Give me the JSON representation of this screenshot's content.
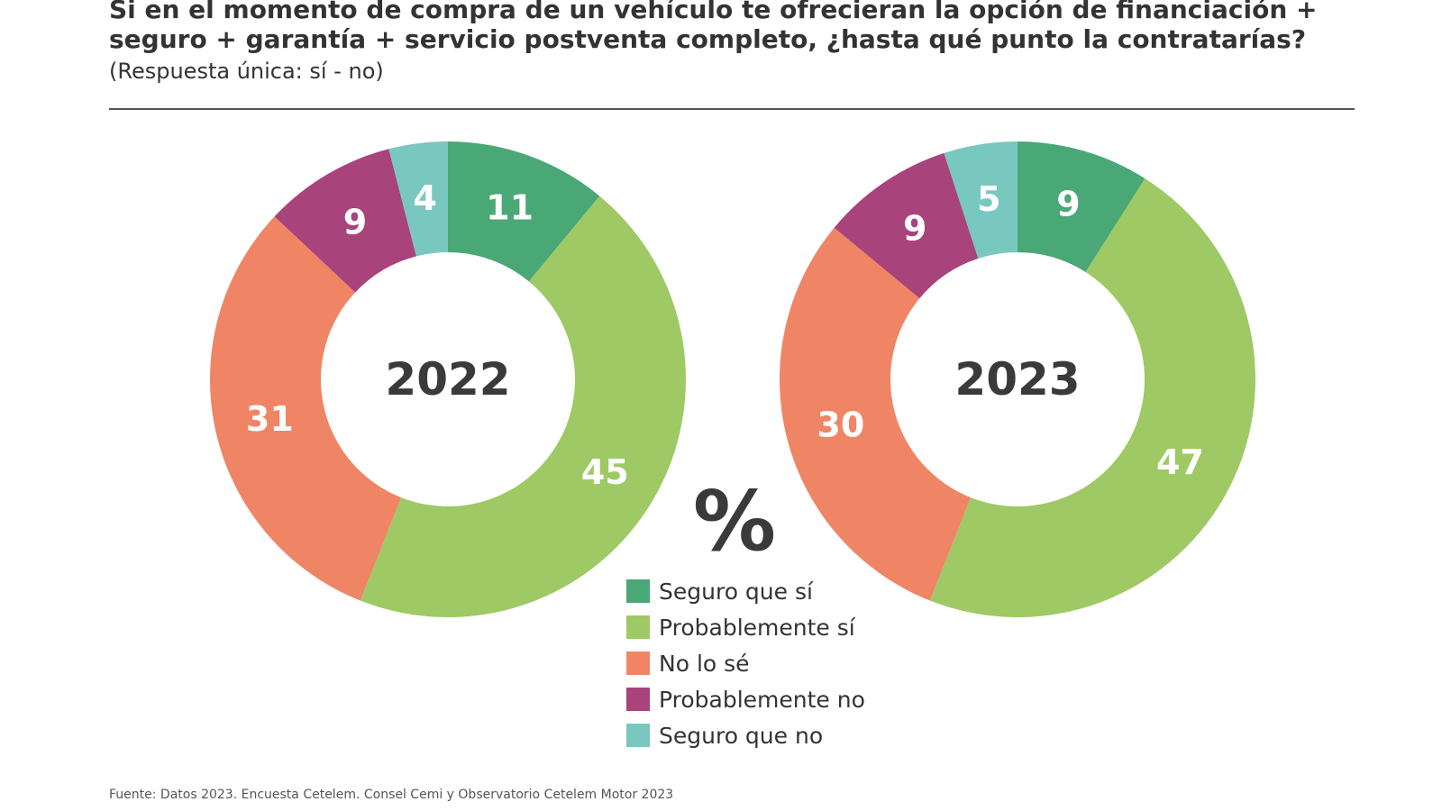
{
  "header": {
    "title": "Si en el momento de compra de un vehículo te ofrecieran la opción de financiación + seguro + garantía + servicio postventa completo, ¿hasta qué punto la contratarías?",
    "subtitle": "(Respuesta única: sí - no)"
  },
  "unit_label": "%",
  "chart_data": [
    {
      "type": "pie",
      "donut": true,
      "center_label": "2022",
      "categories": [
        "Seguro que sí",
        "Probablemente sí",
        "No lo sé",
        "Probablemente no",
        "Seguro que no"
      ],
      "values": [
        11,
        45,
        31,
        9,
        4
      ],
      "colors": [
        "#4aa876",
        "#9ec964",
        "#ef8565",
        "#a8437b",
        "#79c8c0"
      ],
      "start": "top",
      "direction": "clockwise",
      "legend": "bottom-center"
    },
    {
      "type": "pie",
      "donut": true,
      "center_label": "2023",
      "categories": [
        "Seguro que sí",
        "Probablemente sí",
        "No lo sé",
        "Probablemente no",
        "Seguro que no"
      ],
      "values": [
        9,
        47,
        30,
        9,
        5
      ],
      "colors": [
        "#4aa876",
        "#9ec964",
        "#ef8565",
        "#a8437b",
        "#79c8c0"
      ],
      "start": "top",
      "direction": "clockwise",
      "legend": "bottom-center"
    }
  ],
  "legend": {
    "items": [
      {
        "label": "Seguro que sí",
        "color": "#4aa876"
      },
      {
        "label": "Probablemente sí",
        "color": "#9ec964"
      },
      {
        "label": "No lo sé",
        "color": "#ef8565"
      },
      {
        "label": "Probablemente no",
        "color": "#a8437b"
      },
      {
        "label": "Seguro que no",
        "color": "#79c8c0"
      }
    ]
  },
  "footer": {
    "source": "Fuente: Datos 2023. Encuesta Cetelem. Consel Cemi y Observatorio Cetelem Motor 2023"
  }
}
